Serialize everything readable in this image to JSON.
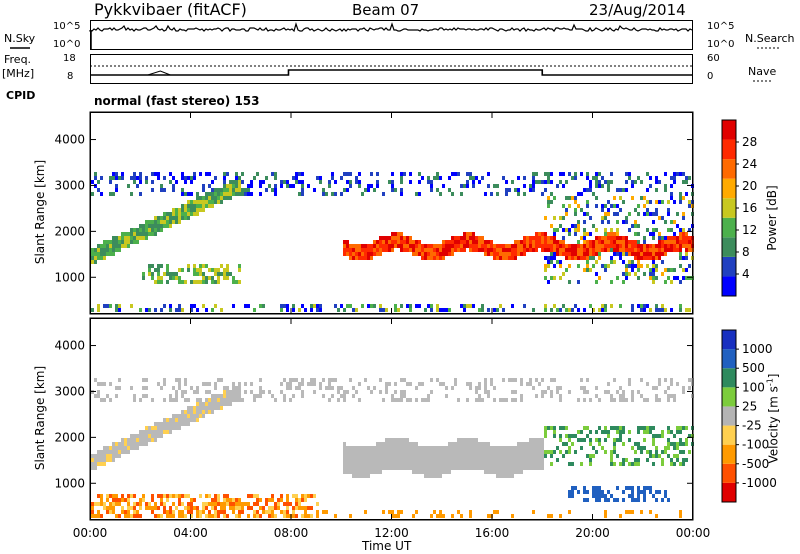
{
  "header": {
    "station": "Pykkvibaer (fitACF)",
    "beam": "Beam 07",
    "date": "23/Aug/2014"
  },
  "strip_nsky": {
    "left_label": "N.Sky",
    "left_ticks": [
      "10^5",
      "10^0"
    ],
    "right_label": "N.Search",
    "right_ticks": [
      "10^5",
      "10^0"
    ]
  },
  "strip_freq": {
    "left_label_1": "Freq.",
    "left_label_2": "[MHz]",
    "left_ticks": [
      "18",
      "8"
    ],
    "right_label": "Nave",
    "right_ticks": [
      "60",
      "0"
    ]
  },
  "cpid": {
    "label": "CPID",
    "value": "normal (fast stereo) 153"
  },
  "colors": {
    "power": [
      "#0000ff",
      "#2040c0",
      "#3c8c5c",
      "#4cb04c",
      "#c8c820",
      "#ffaa00",
      "#ff6a00",
      "#ff2a00",
      "#e00000"
    ],
    "velocity": [
      "#e00000",
      "#ff5000",
      "#ff9a00",
      "#ffd050",
      "#b4b4b4",
      "#7ccc3c",
      "#2e8a5e",
      "#2060c0",
      "#1830c0"
    ],
    "grey": "#b9b9b9"
  },
  "chart_data": [
    {
      "type": "heatmap",
      "panel": "power",
      "ylabel": "Slant Range [km]",
      "xlim": [
        "00:00",
        "24:00"
      ],
      "x_ticks": [
        "00:00",
        "04:00",
        "08:00",
        "12:00",
        "16:00",
        "20:00",
        "00:00"
      ],
      "ylim": [
        200,
        4600
      ],
      "y_ticks": [
        1000,
        2000,
        3000,
        4000
      ],
      "colorbar": {
        "label": "Power [dB]",
        "ticks": [
          4,
          8,
          12,
          16,
          20,
          24,
          28
        ],
        "range": [
          0,
          32
        ]
      },
      "features": [
        {
          "name": "near-range echoes",
          "time_range_h": [
            0,
            24
          ],
          "range_km": [
            200,
            500
          ],
          "power_db": 12
        },
        {
          "name": "main band",
          "time_range_h": [
            10,
            24
          ],
          "range_km": [
            1500,
            1900
          ],
          "power_db": 26
        },
        {
          "name": "dawn diagonal",
          "time_range_h": [
            0,
            6
          ],
          "range_km": [
            1500,
            3100
          ],
          "power_db": 14
        },
        {
          "name": "far-range echoes",
          "time_range_h": [
            0,
            24
          ],
          "range_km": [
            2800,
            3300
          ],
          "power_db": 8
        }
      ]
    },
    {
      "type": "heatmap",
      "panel": "velocity",
      "ylabel": "Velocity [m s-1]",
      "y_axis_label": "Slant Range [km]",
      "xlim": [
        "00:00",
        "24:00"
      ],
      "x_ticks": [
        "00:00",
        "04:00",
        "08:00",
        "12:00",
        "16:00",
        "20:00",
        "00:00"
      ],
      "ylim": [
        200,
        4600
      ],
      "y_ticks": [
        1000,
        2000,
        3000,
        4000
      ],
      "xlabel": "Time UT",
      "colorbar": {
        "label": "Velocity [m s",
        "label_sup": "-1",
        "label_end": "]",
        "ticks": [
          "-1000",
          "-500",
          "-100",
          "-25",
          "25",
          "100",
          "500",
          "1000"
        ]
      },
      "features": [
        {
          "name": "ground scatter band",
          "time_range_h": [
            10,
            18
          ],
          "range_km": [
            1200,
            2000
          ],
          "velocity_ms": 0
        },
        {
          "name": "near-range flow",
          "time_range_h": [
            0,
            9
          ],
          "range_km": [
            300,
            800
          ],
          "velocity_ms": -300
        },
        {
          "name": "evening flow",
          "time_range_h": [
            18,
            23
          ],
          "range_km": [
            1500,
            2200
          ],
          "velocity_ms": 300
        }
      ]
    }
  ]
}
